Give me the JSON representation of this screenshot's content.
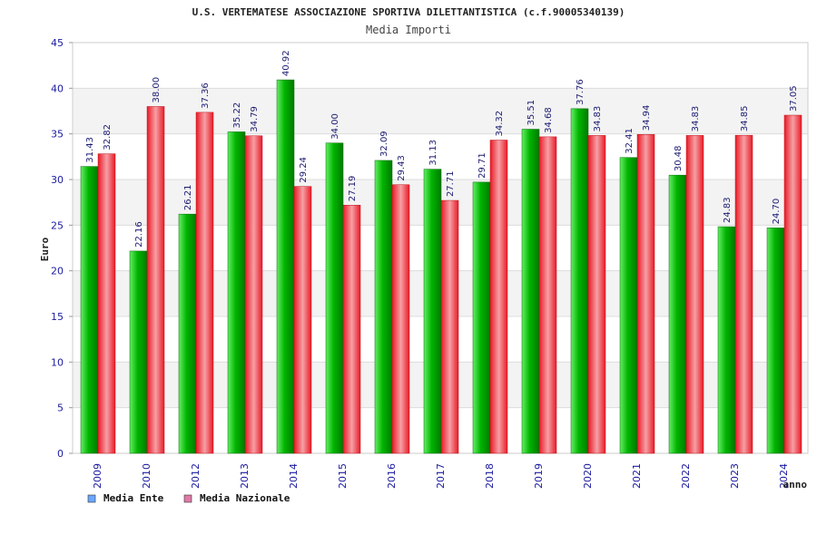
{
  "chart_data": {
    "type": "bar",
    "title": "U.S. VERTEMATESE ASSOCIAZIONE SPORTIVA DILETTANTISTICA (c.f.90005340139)",
    "subtitle": "Media Importi",
    "xlabel": "anno",
    "ylabel": "Euro",
    "ylim": [
      0,
      45
    ],
    "yticks": [
      0,
      5,
      10,
      15,
      20,
      25,
      30,
      35,
      40,
      45
    ],
    "grid": true,
    "legend_position": "bottom-left",
    "categories": [
      "2009",
      "2010",
      "2012",
      "2013",
      "2014",
      "2015",
      "2016",
      "2017",
      "2018",
      "2019",
      "2020",
      "2021",
      "2022",
      "2023",
      "2024"
    ],
    "series": [
      {
        "name": "Media Ente",
        "color": "#00b000",
        "legend_color": "#6aa8ff",
        "values": [
          31.43,
          22.16,
          26.21,
          35.22,
          40.92,
          34.0,
          32.09,
          31.13,
          29.71,
          35.51,
          37.76,
          32.41,
          30.48,
          24.83,
          24.7
        ],
        "labels": [
          "31.43",
          "22.16",
          "26.21",
          "35.22",
          "40.92",
          "34.00",
          "32.09",
          "31.13",
          "29.71",
          "35.51",
          "37.76",
          "32.41",
          "30.48",
          "24.83",
          "24.70"
        ]
      },
      {
        "name": "Media Nazionale",
        "color": "#e8202a",
        "legend_color": "#e07aa8",
        "values": [
          32.82,
          38.0,
          37.36,
          34.79,
          29.24,
          27.19,
          29.43,
          27.71,
          34.32,
          34.68,
          34.83,
          34.94,
          34.83,
          34.85,
          37.05
        ],
        "labels": [
          "32.82",
          "38.00",
          "37.36",
          "34.79",
          "29.24",
          "27.19",
          "29.43",
          "27.71",
          "34.32",
          "34.68",
          "34.83",
          "34.94",
          "34.83",
          "34.85",
          "37.05"
        ]
      }
    ]
  }
}
